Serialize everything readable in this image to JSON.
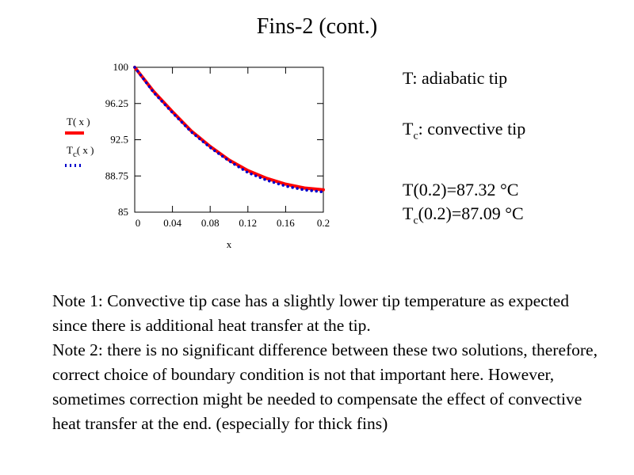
{
  "slide": {
    "title": "Fins-2 (cont.)"
  },
  "annotations": {
    "line1": "T: adiabatic tip",
    "line2_main": "T",
    "line2_sub": "c",
    "line2_rest": ": convective tip",
    "line3": "T(0.2)=87.32 °C",
    "line4_main": "T",
    "line4_sub": "c",
    "line4_rest": "(0.2)=87.09 °C"
  },
  "notes": {
    "note1": "Note 1: Convective tip case has a slightly lower tip temperature as expected since there is additional heat transfer at the tip.",
    "note2": "Note 2: there is no significant difference between these two solutions, therefore, correct choice of boundary condition is not that important here.  However, sometimes correction might be needed to compensate the effect of convective heat transfer at the end. (especially for thick fins)"
  },
  "chart_data": {
    "type": "line",
    "xlabel": "x",
    "xlim": [
      0,
      0.2
    ],
    "ylim": [
      85,
      100
    ],
    "xticks": [
      "0",
      "0.04",
      "0.08",
      "0.12",
      "0.16",
      "0.2"
    ],
    "yticks": [
      "100",
      "96.25",
      "92.5",
      "88.75",
      "85"
    ],
    "grid": false,
    "legend_position": "left",
    "x": [
      0,
      0.02,
      0.04,
      0.06,
      0.08,
      0.1,
      0.12,
      0.14,
      0.16,
      0.18,
      0.2
    ],
    "series": [
      {
        "name": "T( x )",
        "legend_main": "T( x )",
        "legend_sub": "",
        "legend_rest": "",
        "color": "#ff0000",
        "style": "solid",
        "values": [
          100,
          97.5,
          95.4,
          93.4,
          91.8,
          90.4,
          89.3,
          88.5,
          87.9,
          87.5,
          87.32
        ]
      },
      {
        "name": "Tc( x )",
        "legend_main": "T",
        "legend_sub": "c",
        "legend_rest": "( x )",
        "color": "#0000cc",
        "style": "dotted",
        "values": [
          100,
          97.4,
          95.3,
          93.3,
          91.7,
          90.3,
          89.1,
          88.3,
          87.7,
          87.3,
          87.09
        ]
      }
    ]
  }
}
